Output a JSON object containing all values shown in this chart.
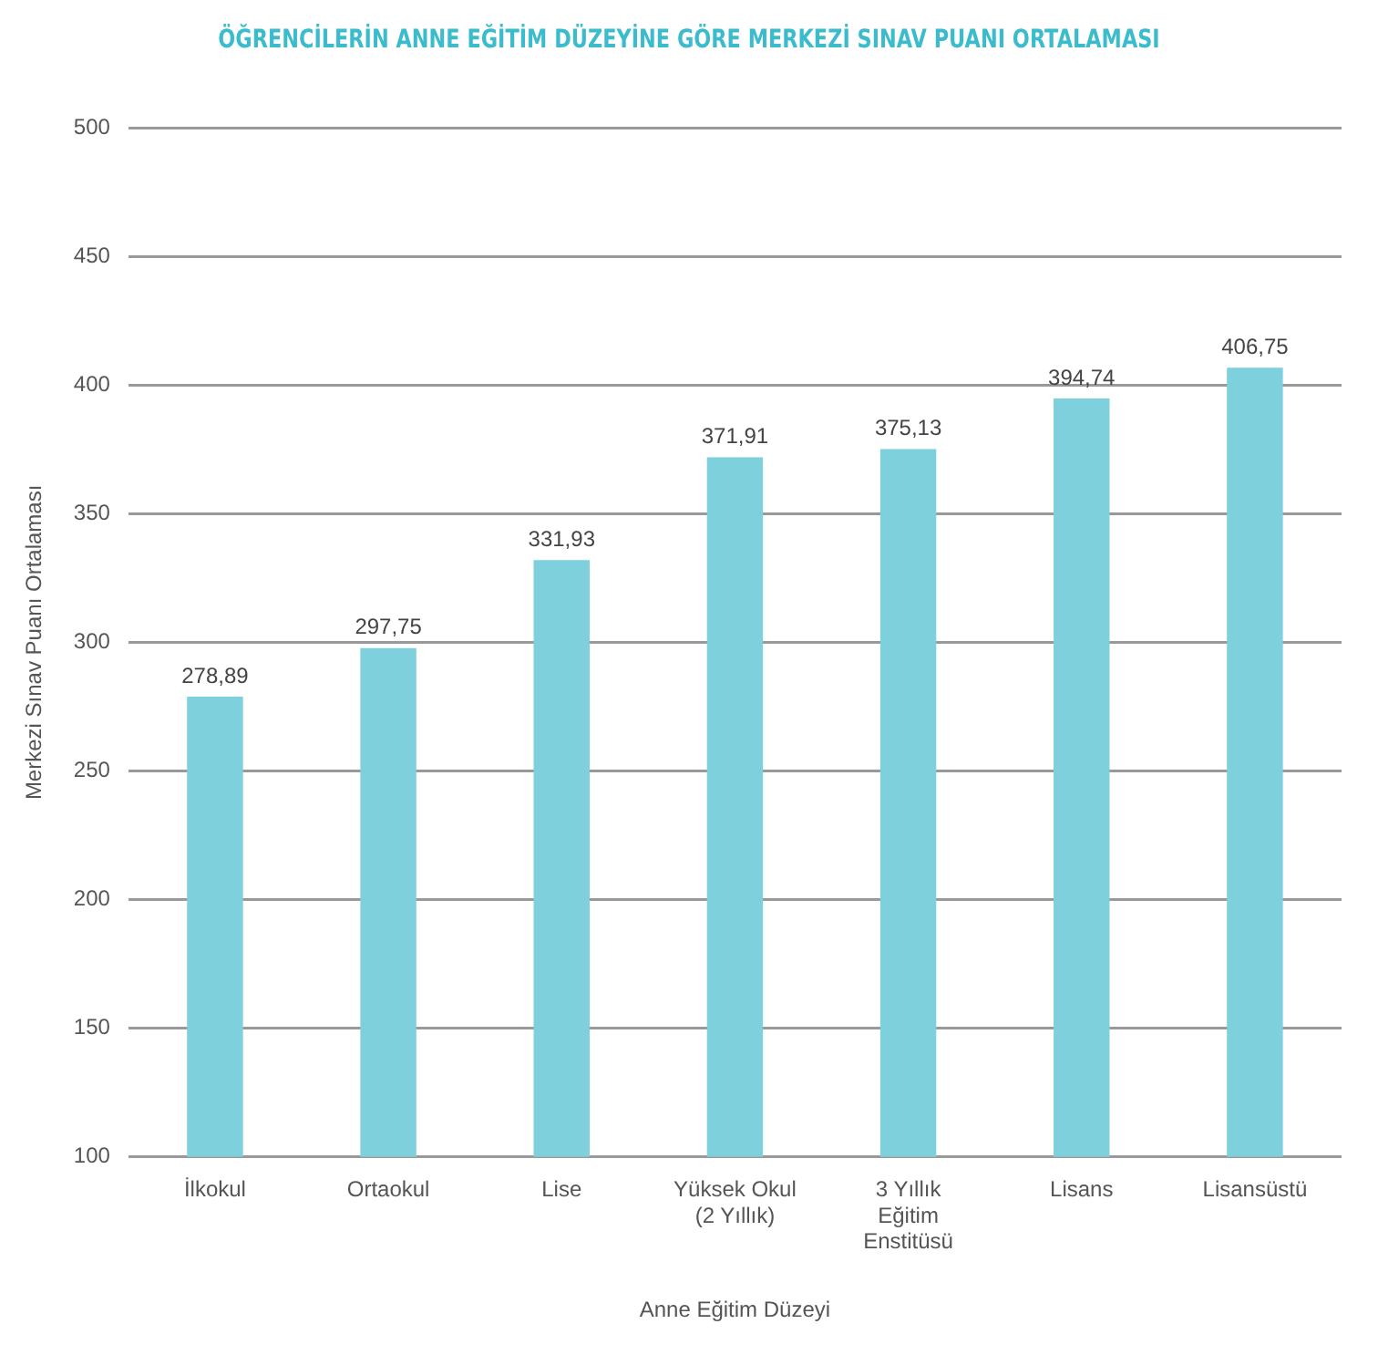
{
  "chart_data": {
    "type": "bar",
    "title": "ÖĞRENCİLERİN ANNE EĞİTİM DÜZEYİNE GÖRE MERKEZİ SINAV PUANI ORTALAMASI",
    "xlabel": "Anne Eğitim Düzeyi",
    "ylabel": "Merkezi Sınav Puanı Ortalaması",
    "categories": [
      "İlkokul",
      "Ortaokul",
      "Lise",
      "Yüksek Okul (2 Yıllık)",
      "3 Yıllık Eğitim Enstitüsü",
      "Lisans",
      "Lisansüstü"
    ],
    "values": [
      278.89,
      297.75,
      331.93,
      371.91,
      375.13,
      394.74,
      406.75
    ],
    "value_labels": [
      "278,89",
      "297,75",
      "331,93",
      "371,91",
      "375,13",
      "394,74",
      "406,75"
    ],
    "color": "#7dd0dc",
    "ylim": [
      100,
      500
    ],
    "yticks": [
      100,
      150,
      200,
      250,
      300,
      350,
      400,
      450,
      500
    ],
    "grid": "y"
  }
}
